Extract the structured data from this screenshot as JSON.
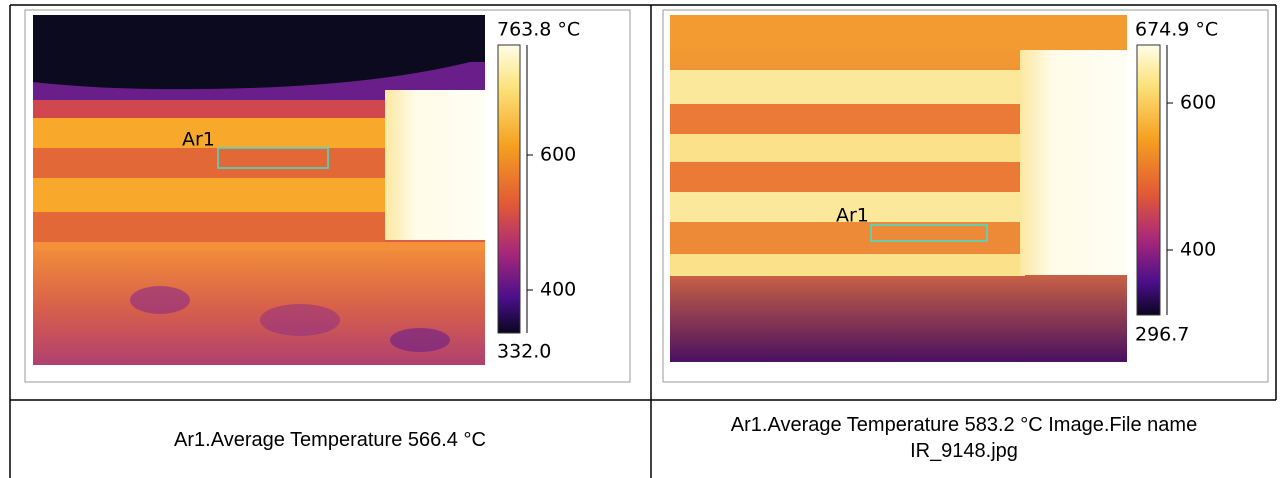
{
  "panels": [
    {
      "colorbar": {
        "max_label": "763.8 °C",
        "min_label": "332.0",
        "ticks": [
          "600",
          "400"
        ]
      },
      "area_label": "Ar1",
      "caption": "Ar1.Average Temperature 566.4 °C"
    },
    {
      "colorbar": {
        "max_label": "674.9 °C",
        "min_label": "296.7",
        "ticks": [
          "600",
          "400"
        ]
      },
      "area_label": "Ar1",
      "caption": "Ar1.Average Temperature 583.2 °C Image.File name IR_9148.jpg"
    }
  ]
}
